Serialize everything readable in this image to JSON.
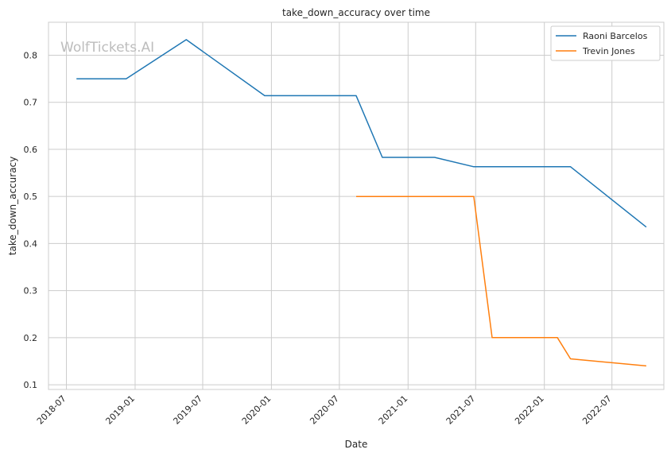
{
  "chart_data": {
    "type": "line",
    "title": "take_down_accuracy over time",
    "xlabel": "Date",
    "ylabel": "take_down_accuracy",
    "watermark": "WolfTickets.AI",
    "xlim": [
      "2018-05-14",
      "2022-11-17"
    ],
    "ylim": [
      0.09,
      0.87
    ],
    "x_ticks": [
      "2018-07",
      "2019-01",
      "2019-07",
      "2020-01",
      "2020-07",
      "2021-01",
      "2021-07",
      "2022-01",
      "2022-07"
    ],
    "y_ticks": [
      0.1,
      0.2,
      0.3,
      0.4,
      0.5,
      0.6,
      0.7,
      0.8
    ],
    "grid": true,
    "legend_position": "top-right",
    "series": [
      {
        "name": "Raoni Barcelos",
        "color": "#1f77b4",
        "x": [
          "2018-07-28",
          "2018-12-08",
          "2019-05-18",
          "2019-12-14",
          "2020-08-15",
          "2020-10-24",
          "2021-03-13",
          "2021-06-26",
          "2022-03-12",
          "2022-10-01"
        ],
        "y": [
          0.75,
          0.75,
          0.833,
          0.714,
          0.714,
          0.583,
          0.583,
          0.563,
          0.563,
          0.435
        ]
      },
      {
        "name": "Trevin Jones",
        "color": "#ff7f0e",
        "x": [
          "2020-08-15",
          "2021-06-26",
          "2021-08-14",
          "2022-02-05",
          "2022-03-12",
          "2022-10-01"
        ],
        "y": [
          0.5,
          0.5,
          0.2,
          0.2,
          0.155,
          0.14
        ]
      }
    ]
  }
}
